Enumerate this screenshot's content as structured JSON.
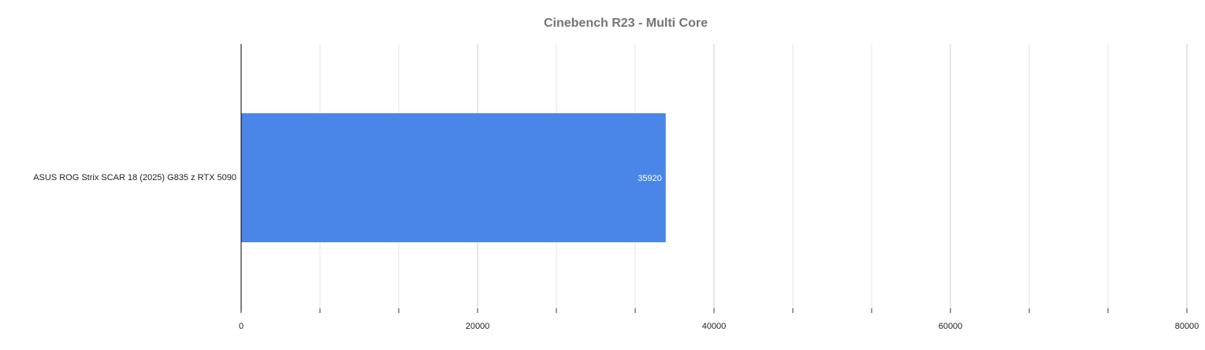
{
  "chart_data": {
    "type": "bar",
    "orientation": "horizontal",
    "title": "Cinebench R23 - Multi Core",
    "categories": [
      "ASUS ROG Strix SCAR 18 (2025) G835 z RTX 5090"
    ],
    "values": [
      35920
    ],
    "color": "#4a86e8",
    "xlim": [
      0,
      80000
    ],
    "xticks": [
      0,
      20000,
      40000,
      60000,
      80000
    ],
    "grid": true
  }
}
